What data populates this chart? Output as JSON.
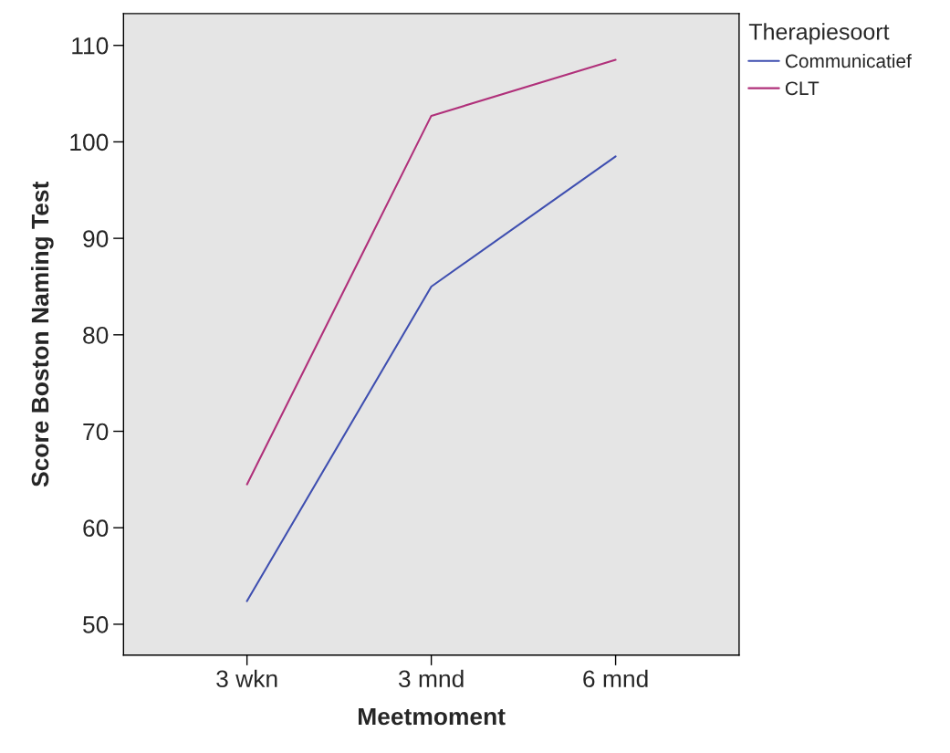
{
  "chart_data": {
    "type": "line",
    "xlabel": "Meetmoment",
    "ylabel": "Score Boston Naming Test",
    "legend_title": "Therapiesoort",
    "categories": [
      "3 wkn",
      "3 mnd",
      "6 mnd"
    ],
    "series": [
      {
        "name": "Communicatief",
        "color": "#3f4fb0",
        "values": [
          52.4,
          85.0,
          98.5
        ]
      },
      {
        "name": "CLT",
        "color": "#b0307a",
        "values": [
          64.5,
          102.7,
          108.5
        ]
      }
    ],
    "ylim": [
      46.8,
      113.3
    ],
    "yticks": [
      50,
      60,
      70,
      80,
      90,
      100,
      110
    ],
    "grid": false,
    "legend": "top right",
    "marker": "none",
    "line_style": "solid"
  }
}
